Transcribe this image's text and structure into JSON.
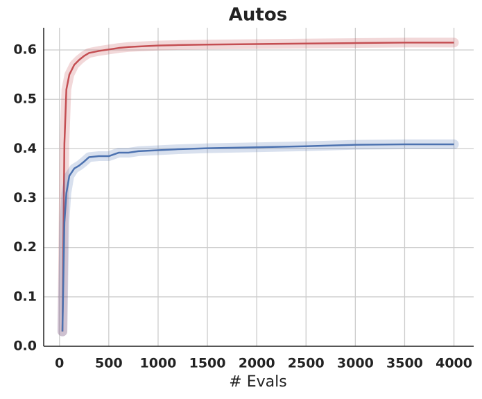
{
  "chart_data": {
    "type": "line",
    "title": "Autos",
    "x_label": "# Evals",
    "x": [
      30,
      50,
      70,
      100,
      150,
      200,
      250,
      300,
      400,
      500,
      600,
      700,
      800,
      1000,
      1200,
      1500,
      2000,
      2500,
      3000,
      3500,
      4000
    ],
    "series": [
      {
        "color": "#c44e52",
        "values": [
          0.03,
          0.41,
          0.52,
          0.55,
          0.57,
          0.58,
          0.588,
          0.594,
          0.598,
          0.601,
          0.604,
          0.606,
          0.607,
          0.609,
          0.61,
          0.611,
          0.612,
          0.613,
          0.614,
          0.615,
          0.615
        ]
      },
      {
        "color": "#4c72b0",
        "values": [
          0.03,
          0.25,
          0.31,
          0.345,
          0.36,
          0.366,
          0.374,
          0.383,
          0.385,
          0.385,
          0.392,
          0.392,
          0.395,
          0.397,
          0.399,
          0.401,
          0.403,
          0.405,
          0.408,
          0.409,
          0.409
        ]
      }
    ],
    "xlim": [
      -160,
      4200
    ],
    "ylim": [
      0,
      0.645
    ],
    "xticks": [
      0,
      500,
      1000,
      1500,
      2000,
      2500,
      3000,
      3500,
      4000
    ],
    "yticks": [
      {
        "value": 0,
        "label": "0.0"
      },
      0.1,
      0.2,
      0.3,
      0.4,
      0.5,
      0.6
    ],
    "grid": true
  }
}
